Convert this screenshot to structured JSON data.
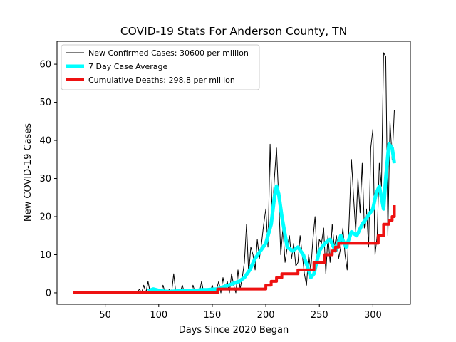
{
  "chart_data": {
    "type": "line",
    "title": "COVID-19 Stats For Anderson County, TN",
    "xlabel": "Days Since 2020 Began",
    "ylabel": "New COVID-19 Cases",
    "xlim": [
      5,
      335
    ],
    "ylim": [
      -3,
      66
    ],
    "xticks": [
      50,
      100,
      150,
      200,
      250,
      300
    ],
    "yticks": [
      0,
      10,
      20,
      30,
      40,
      50,
      60
    ],
    "grid": false,
    "legend_position": "top-left",
    "series": [
      {
        "name": "New Confirmed Cases: 30600 per million",
        "color": "#000000",
        "line_width": 1,
        "x": [
          20,
          30,
          40,
          50,
          60,
          70,
          80,
          82,
          84,
          86,
          88,
          90,
          92,
          94,
          96,
          98,
          100,
          102,
          104,
          106,
          108,
          110,
          112,
          114,
          116,
          118,
          120,
          122,
          124,
          126,
          128,
          130,
          132,
          134,
          136,
          138,
          140,
          142,
          144,
          146,
          148,
          150,
          152,
          154,
          156,
          158,
          160,
          162,
          164,
          166,
          168,
          170,
          172,
          174,
          176,
          178,
          180,
          182,
          184,
          186,
          188,
          190,
          192,
          194,
          196,
          198,
          200,
          202,
          204,
          206,
          208,
          210,
          212,
          214,
          216,
          218,
          220,
          222,
          224,
          226,
          228,
          230,
          232,
          234,
          236,
          238,
          240,
          242,
          244,
          246,
          248,
          250,
          252,
          254,
          256,
          258,
          260,
          262,
          264,
          266,
          268,
          270,
          272,
          274,
          276,
          278,
          280,
          282,
          284,
          286,
          288,
          290,
          292,
          294,
          296,
          298,
          300,
          302,
          304,
          306,
          308,
          310,
          312,
          313,
          314,
          316,
          318,
          320
        ],
        "y": [
          0,
          0,
          0,
          0,
          0,
          0,
          0,
          1,
          0,
          2,
          0,
          3,
          0,
          1,
          0,
          0,
          1,
          0,
          2,
          0,
          0,
          1,
          0,
          5,
          0,
          1,
          0,
          2,
          0,
          1,
          0,
          0,
          2,
          0,
          1,
          0,
          3,
          0,
          1,
          0,
          0,
          2,
          0,
          1,
          3,
          0,
          4,
          1,
          3,
          0,
          5,
          2,
          0,
          6,
          1,
          4,
          8,
          18,
          5,
          12,
          10,
          6,
          14,
          9,
          13,
          18,
          22,
          12,
          39,
          20,
          30,
          38,
          25,
          10,
          17,
          8,
          12,
          15,
          9,
          13,
          7,
          8,
          15,
          10,
          5,
          2,
          10,
          6,
          14,
          20,
          9,
          14,
          13,
          17,
          5,
          15,
          8,
          18,
          12,
          15,
          9,
          12,
          17,
          10,
          6,
          20,
          35,
          25,
          16,
          30,
          21,
          34,
          17,
          22,
          12,
          38,
          43,
          10,
          15,
          34,
          28,
          63,
          62,
          40,
          15,
          45,
          35,
          48
        ]
      },
      {
        "name": "7 Day Case Average",
        "color": "#00ffff",
        "line_width": 5,
        "x": [
          90,
          95,
          100,
          105,
          110,
          115,
          120,
          125,
          130,
          135,
          140,
          145,
          150,
          155,
          160,
          165,
          170,
          175,
          180,
          185,
          190,
          195,
          200,
          205,
          208,
          210,
          212,
          215,
          220,
          225,
          230,
          235,
          240,
          242,
          245,
          250,
          255,
          260,
          265,
          270,
          275,
          280,
          285,
          290,
          295,
          300,
          303,
          306,
          308,
          310,
          312,
          315,
          318,
          320
        ],
        "y": [
          0.5,
          1,
          0.6,
          0.4,
          0.3,
          0.4,
          0.5,
          0.5,
          0.6,
          0.6,
          0.8,
          0.8,
          0.9,
          1,
          1.5,
          2,
          2.5,
          3,
          4,
          6,
          9,
          11,
          13,
          18,
          25,
          28,
          26,
          20,
          12,
          11,
          12,
          10,
          6,
          4,
          5,
          11,
          13,
          14,
          11,
          15,
          12,
          16,
          15,
          18,
          20,
          22,
          26,
          28,
          25,
          22,
          30,
          39,
          38,
          34
        ]
      },
      {
        "name": "Cumulative Deaths: 298.8 per million",
        "color": "#ee1111",
        "line_width": 4,
        "step": true,
        "x": [
          20,
          97,
          155,
          200,
          205,
          210,
          215,
          230,
          245,
          255,
          262,
          265,
          268,
          285,
          300,
          305,
          310,
          315,
          318,
          320
        ],
        "y": [
          0,
          0,
          1,
          2,
          3,
          4,
          5,
          6,
          8,
          10,
          11,
          12,
          13,
          13,
          13,
          15,
          18,
          19,
          20,
          23
        ]
      }
    ]
  }
}
